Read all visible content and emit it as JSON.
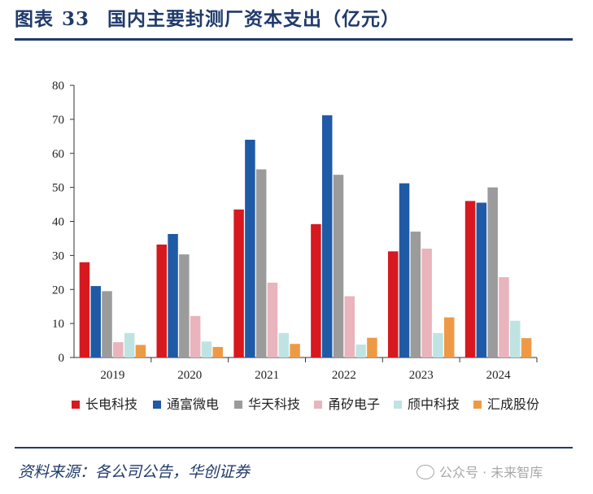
{
  "header": {
    "figure_label": "图表",
    "figure_number": "33",
    "title": "国内主要封测厂资本支出（亿元）"
  },
  "footer": {
    "source": "资料来源：各公司公告，华创证券",
    "watermark": "公众号 · 未来智库"
  },
  "colors": {
    "title": "#1f3a6b",
    "axis": "#333333"
  },
  "chart_data": {
    "type": "bar",
    "title": "国内主要封测厂资本支出（亿元）",
    "xlabel": "",
    "ylabel": "",
    "ylim": [
      0,
      80
    ],
    "yticks": [
      0,
      10,
      20,
      30,
      40,
      50,
      60,
      70,
      80
    ],
    "categories": [
      "2019",
      "2020",
      "2021",
      "2022",
      "2023",
      "2024"
    ],
    "legend_position": "bottom",
    "series": [
      {
        "name": "长电科技",
        "color": "#d7191f",
        "values": [
          28,
          33.2,
          43.5,
          39.2,
          31.2,
          46
        ]
      },
      {
        "name": "通富微电",
        "color": "#1f5aa6",
        "values": [
          21,
          36.3,
          64,
          71.2,
          51.2,
          45.5
        ]
      },
      {
        "name": "华天科技",
        "color": "#9b9b9b",
        "values": [
          19.5,
          30.3,
          55.3,
          53.7,
          37,
          50
        ]
      },
      {
        "name": "甬矽电子",
        "color": "#e9b4bc",
        "values": [
          4.5,
          12.2,
          22,
          18,
          32,
          23.6
        ]
      },
      {
        "name": "颀中科技",
        "color": "#bfe3e3",
        "values": [
          7.2,
          4.7,
          7.2,
          3.8,
          7.2,
          10.8
        ]
      },
      {
        "name": "汇成股份",
        "color": "#ee9a45",
        "values": [
          3.7,
          3.1,
          4,
          5.8,
          11.8,
          5.7
        ]
      }
    ]
  }
}
